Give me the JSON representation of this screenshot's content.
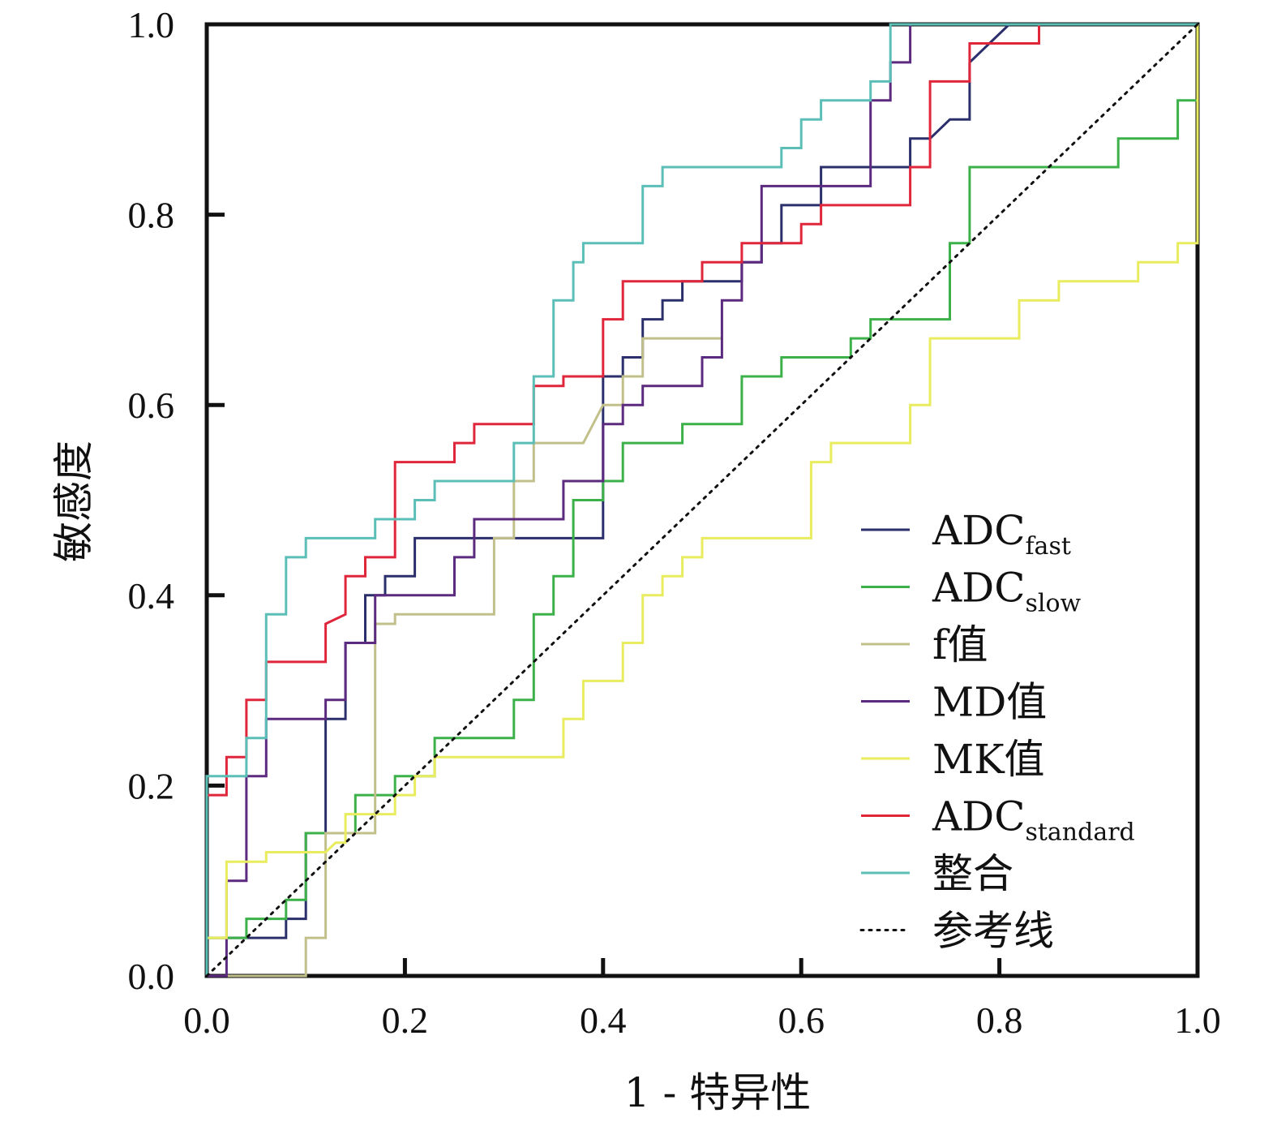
{
  "chart_data": {
    "type": "line",
    "xlabel": "1 - 特异性",
    "ylabel": "敏感度",
    "xlim": [
      0,
      1
    ],
    "ylim": [
      0,
      1
    ],
    "x_ticks": [
      "0.0",
      "0.2",
      "0.4",
      "0.6",
      "0.8",
      "1.0"
    ],
    "y_ticks": [
      "0.0",
      "0.2",
      "0.4",
      "0.6",
      "0.8",
      "1.0"
    ],
    "grid": false,
    "legend_position": "bottom-right",
    "series": [
      {
        "name": "ADC",
        "name_sub": "fast",
        "color": "#2b2f6b",
        "points": [
          [
            0,
            0
          ],
          [
            0,
            0.04
          ],
          [
            0.08,
            0.04
          ],
          [
            0.08,
            0.06
          ],
          [
            0.1,
            0.06
          ],
          [
            0.1,
            0.15
          ],
          [
            0.12,
            0.15
          ],
          [
            0.12,
            0.27
          ],
          [
            0.14,
            0.27
          ],
          [
            0.14,
            0.35
          ],
          [
            0.16,
            0.35
          ],
          [
            0.16,
            0.4
          ],
          [
            0.18,
            0.4
          ],
          [
            0.18,
            0.42
          ],
          [
            0.21,
            0.42
          ],
          [
            0.21,
            0.46
          ],
          [
            0.4,
            0.46
          ],
          [
            0.4,
            0.63
          ],
          [
            0.42,
            0.63
          ],
          [
            0.42,
            0.65
          ],
          [
            0.44,
            0.65
          ],
          [
            0.44,
            0.69
          ],
          [
            0.46,
            0.69
          ],
          [
            0.46,
            0.71
          ],
          [
            0.48,
            0.71
          ],
          [
            0.48,
            0.73
          ],
          [
            0.54,
            0.73
          ],
          [
            0.54,
            0.75
          ],
          [
            0.56,
            0.75
          ],
          [
            0.56,
            0.77
          ],
          [
            0.58,
            0.77
          ],
          [
            0.58,
            0.81
          ],
          [
            0.62,
            0.81
          ],
          [
            0.62,
            0.85
          ],
          [
            0.71,
            0.85
          ],
          [
            0.71,
            0.88
          ],
          [
            0.73,
            0.88
          ],
          [
            0.75,
            0.9
          ],
          [
            0.77,
            0.9
          ],
          [
            0.77,
            0.96
          ],
          [
            0.81,
            1.0
          ],
          [
            1.0,
            1.0
          ]
        ]
      },
      {
        "name": "ADC",
        "name_sub": "slow",
        "color": "#3cb14a",
        "points": [
          [
            0,
            0
          ],
          [
            0,
            0.04
          ],
          [
            0.04,
            0.04
          ],
          [
            0.04,
            0.06
          ],
          [
            0.08,
            0.06
          ],
          [
            0.08,
            0.08
          ],
          [
            0.1,
            0.08
          ],
          [
            0.1,
            0.15
          ],
          [
            0.15,
            0.15
          ],
          [
            0.15,
            0.19
          ],
          [
            0.19,
            0.19
          ],
          [
            0.19,
            0.21
          ],
          [
            0.23,
            0.21
          ],
          [
            0.23,
            0.25
          ],
          [
            0.31,
            0.25
          ],
          [
            0.31,
            0.29
          ],
          [
            0.33,
            0.29
          ],
          [
            0.33,
            0.38
          ],
          [
            0.35,
            0.38
          ],
          [
            0.35,
            0.42
          ],
          [
            0.37,
            0.42
          ],
          [
            0.37,
            0.5
          ],
          [
            0.4,
            0.5
          ],
          [
            0.4,
            0.52
          ],
          [
            0.42,
            0.52
          ],
          [
            0.42,
            0.56
          ],
          [
            0.48,
            0.56
          ],
          [
            0.48,
            0.58
          ],
          [
            0.54,
            0.58
          ],
          [
            0.54,
            0.63
          ],
          [
            0.58,
            0.63
          ],
          [
            0.58,
            0.65
          ],
          [
            0.65,
            0.65
          ],
          [
            0.65,
            0.67
          ],
          [
            0.67,
            0.67
          ],
          [
            0.67,
            0.69
          ],
          [
            0.75,
            0.69
          ],
          [
            0.75,
            0.77
          ],
          [
            0.77,
            0.77
          ],
          [
            0.77,
            0.85
          ],
          [
            0.92,
            0.85
          ],
          [
            0.92,
            0.88
          ],
          [
            0.98,
            0.88
          ],
          [
            0.98,
            0.92
          ],
          [
            1.0,
            0.92
          ],
          [
            1.0,
            1.0
          ]
        ]
      },
      {
        "name": "f值",
        "name_sub": "",
        "color": "#c2c08a",
        "points": [
          [
            0,
            0
          ],
          [
            0.1,
            0
          ],
          [
            0.1,
            0.04
          ],
          [
            0.12,
            0.04
          ],
          [
            0.12,
            0.15
          ],
          [
            0.17,
            0.15
          ],
          [
            0.17,
            0.37
          ],
          [
            0.19,
            0.37
          ],
          [
            0.19,
            0.38
          ],
          [
            0.29,
            0.38
          ],
          [
            0.29,
            0.46
          ],
          [
            0.31,
            0.46
          ],
          [
            0.31,
            0.52
          ],
          [
            0.33,
            0.52
          ],
          [
            0.33,
            0.56
          ],
          [
            0.38,
            0.56
          ],
          [
            0.4,
            0.6
          ],
          [
            0.42,
            0.6
          ],
          [
            0.42,
            0.63
          ],
          [
            0.44,
            0.63
          ],
          [
            0.44,
            0.67
          ],
          [
            0.52,
            0.67
          ]
        ]
      },
      {
        "name": "MD值",
        "name_sub": "",
        "color": "#5c2a7e",
        "points": [
          [
            0,
            0
          ],
          [
            0.02,
            0
          ],
          [
            0.02,
            0.1
          ],
          [
            0.04,
            0.1
          ],
          [
            0.04,
            0.21
          ],
          [
            0.06,
            0.21
          ],
          [
            0.06,
            0.27
          ],
          [
            0.12,
            0.27
          ],
          [
            0.12,
            0.29
          ],
          [
            0.14,
            0.29
          ],
          [
            0.14,
            0.35
          ],
          [
            0.17,
            0.35
          ],
          [
            0.17,
            0.4
          ],
          [
            0.25,
            0.4
          ],
          [
            0.25,
            0.44
          ],
          [
            0.27,
            0.44
          ],
          [
            0.27,
            0.48
          ],
          [
            0.36,
            0.48
          ],
          [
            0.36,
            0.52
          ],
          [
            0.4,
            0.52
          ],
          [
            0.4,
            0.58
          ],
          [
            0.42,
            0.58
          ],
          [
            0.42,
            0.6
          ],
          [
            0.44,
            0.6
          ],
          [
            0.44,
            0.62
          ],
          [
            0.5,
            0.62
          ],
          [
            0.5,
            0.65
          ],
          [
            0.52,
            0.65
          ],
          [
            0.52,
            0.71
          ],
          [
            0.54,
            0.71
          ],
          [
            0.54,
            0.75
          ],
          [
            0.56,
            0.75
          ],
          [
            0.56,
            0.83
          ],
          [
            0.67,
            0.83
          ],
          [
            0.67,
            0.92
          ],
          [
            0.69,
            0.92
          ],
          [
            0.69,
            0.96
          ],
          [
            0.71,
            0.96
          ],
          [
            0.71,
            1.0
          ],
          [
            1.0,
            1.0
          ]
        ]
      },
      {
        "name": "MK值",
        "name_sub": "",
        "color": "#e8ec5e",
        "points": [
          [
            0,
            0
          ],
          [
            0,
            0.04
          ],
          [
            0.02,
            0.04
          ],
          [
            0.02,
            0.12
          ],
          [
            0.06,
            0.12
          ],
          [
            0.06,
            0.13
          ],
          [
            0.12,
            0.13
          ],
          [
            0.13,
            0.14
          ],
          [
            0.14,
            0.14
          ],
          [
            0.14,
            0.17
          ],
          [
            0.19,
            0.17
          ],
          [
            0.19,
            0.19
          ],
          [
            0.21,
            0.19
          ],
          [
            0.21,
            0.21
          ],
          [
            0.23,
            0.21
          ],
          [
            0.23,
            0.23
          ],
          [
            0.36,
            0.23
          ],
          [
            0.36,
            0.27
          ],
          [
            0.38,
            0.27
          ],
          [
            0.38,
            0.31
          ],
          [
            0.42,
            0.31
          ],
          [
            0.42,
            0.35
          ],
          [
            0.44,
            0.35
          ],
          [
            0.44,
            0.4
          ],
          [
            0.46,
            0.4
          ],
          [
            0.46,
            0.42
          ],
          [
            0.48,
            0.42
          ],
          [
            0.48,
            0.44
          ],
          [
            0.5,
            0.44
          ],
          [
            0.5,
            0.46
          ],
          [
            0.61,
            0.46
          ],
          [
            0.61,
            0.54
          ],
          [
            0.63,
            0.54
          ],
          [
            0.63,
            0.56
          ],
          [
            0.71,
            0.56
          ],
          [
            0.71,
            0.6
          ],
          [
            0.73,
            0.6
          ],
          [
            0.73,
            0.67
          ],
          [
            0.82,
            0.67
          ],
          [
            0.82,
            0.71
          ],
          [
            0.86,
            0.71
          ],
          [
            0.86,
            0.73
          ],
          [
            0.94,
            0.73
          ],
          [
            0.94,
            0.75
          ],
          [
            0.98,
            0.75
          ],
          [
            0.98,
            0.77
          ],
          [
            1.0,
            0.77
          ],
          [
            1.0,
            1.0
          ]
        ]
      },
      {
        "name": "ADC",
        "name_sub": "standard",
        "color": "#e0263a",
        "points": [
          [
            0,
            0
          ],
          [
            0,
            0.19
          ],
          [
            0.02,
            0.19
          ],
          [
            0.02,
            0.23
          ],
          [
            0.04,
            0.23
          ],
          [
            0.04,
            0.29
          ],
          [
            0.06,
            0.29
          ],
          [
            0.06,
            0.33
          ],
          [
            0.12,
            0.33
          ],
          [
            0.12,
            0.37
          ],
          [
            0.14,
            0.38
          ],
          [
            0.14,
            0.42
          ],
          [
            0.16,
            0.42
          ],
          [
            0.16,
            0.44
          ],
          [
            0.19,
            0.44
          ],
          [
            0.19,
            0.54
          ],
          [
            0.25,
            0.54
          ],
          [
            0.25,
            0.56
          ],
          [
            0.27,
            0.56
          ],
          [
            0.27,
            0.58
          ],
          [
            0.33,
            0.58
          ],
          [
            0.33,
            0.62
          ],
          [
            0.36,
            0.62
          ],
          [
            0.36,
            0.63
          ],
          [
            0.4,
            0.63
          ],
          [
            0.4,
            0.69
          ],
          [
            0.42,
            0.69
          ],
          [
            0.42,
            0.73
          ],
          [
            0.5,
            0.73
          ],
          [
            0.5,
            0.75
          ],
          [
            0.54,
            0.75
          ],
          [
            0.54,
            0.77
          ],
          [
            0.6,
            0.77
          ],
          [
            0.6,
            0.79
          ],
          [
            0.62,
            0.79
          ],
          [
            0.62,
            0.81
          ],
          [
            0.71,
            0.81
          ],
          [
            0.71,
            0.85
          ],
          [
            0.73,
            0.85
          ],
          [
            0.73,
            0.94
          ],
          [
            0.77,
            0.94
          ],
          [
            0.77,
            0.98
          ],
          [
            0.84,
            0.98
          ],
          [
            0.84,
            1.0
          ],
          [
            1.0,
            1.0
          ]
        ]
      },
      {
        "name": "整合",
        "name_sub": "",
        "color": "#5cbfb7",
        "points": [
          [
            0,
            0
          ],
          [
            0,
            0.21
          ],
          [
            0.04,
            0.21
          ],
          [
            0.04,
            0.25
          ],
          [
            0.06,
            0.25
          ],
          [
            0.06,
            0.38
          ],
          [
            0.08,
            0.38
          ],
          [
            0.08,
            0.44
          ],
          [
            0.1,
            0.44
          ],
          [
            0.1,
            0.46
          ],
          [
            0.17,
            0.46
          ],
          [
            0.17,
            0.48
          ],
          [
            0.21,
            0.48
          ],
          [
            0.21,
            0.5
          ],
          [
            0.23,
            0.5
          ],
          [
            0.23,
            0.52
          ],
          [
            0.31,
            0.52
          ],
          [
            0.31,
            0.56
          ],
          [
            0.33,
            0.56
          ],
          [
            0.33,
            0.63
          ],
          [
            0.35,
            0.63
          ],
          [
            0.35,
            0.71
          ],
          [
            0.37,
            0.71
          ],
          [
            0.37,
            0.75
          ],
          [
            0.38,
            0.75
          ],
          [
            0.38,
            0.77
          ],
          [
            0.44,
            0.77
          ],
          [
            0.44,
            0.83
          ],
          [
            0.46,
            0.83
          ],
          [
            0.46,
            0.85
          ],
          [
            0.58,
            0.85
          ],
          [
            0.58,
            0.87
          ],
          [
            0.6,
            0.87
          ],
          [
            0.6,
            0.9
          ],
          [
            0.62,
            0.9
          ],
          [
            0.62,
            0.92
          ],
          [
            0.67,
            0.92
          ],
          [
            0.67,
            0.94
          ],
          [
            0.69,
            0.94
          ],
          [
            0.69,
            1.0
          ],
          [
            1.0,
            1.0
          ]
        ]
      },
      {
        "name": "参考线",
        "name_sub": "",
        "color": "#111111",
        "dashed": true,
        "points": [
          [
            0,
            0
          ],
          [
            1,
            1
          ]
        ]
      }
    ]
  }
}
